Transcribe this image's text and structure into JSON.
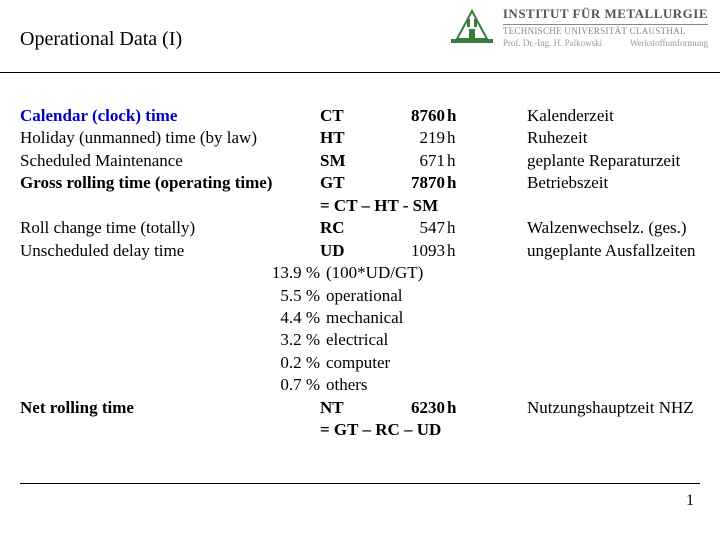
{
  "header": {
    "title": "Operational Data (I)",
    "institute": "INSTITUT FÜR METALLURGIE",
    "university": "TECHNISCHE UNIVERSITÄT CLAUSTHAL",
    "prof": "Prof. Dr.-Ing. H. Palkowski",
    "dept": "Werkstoffumformung"
  },
  "rows": {
    "ct": {
      "label": "Calendar (clock) time",
      "abbr": "CT",
      "value": "8760",
      "unit": "h",
      "de": "Kalenderzeit"
    },
    "ht": {
      "label": "Holiday (unmanned) time (by law)",
      "abbr": "HT",
      "value": "219",
      "unit": "h",
      "de": "Ruhezeit"
    },
    "sm": {
      "label": "Scheduled Maintenance",
      "abbr": "SM",
      "value": "671",
      "unit": "h",
      "de": "geplante Reparaturzeit"
    },
    "gt": {
      "label": "Gross rolling time (operating time)",
      "abbr": "GT",
      "value": "7870",
      "unit": "h",
      "de": "Betriebszeit"
    },
    "gt_formula": "= CT – HT - SM",
    "rc": {
      "label": "Roll change time (totally)",
      "abbr": "RC",
      "value": "547",
      "unit": "h",
      "de": " Walzenwechselz. (ges.)"
    },
    "ud": {
      "label": "Unscheduled delay time",
      "abbr": "UD",
      "value": "1093",
      "unit": "h",
      "de": "ungeplante Ausfallzeiten"
    },
    "pct": [
      {
        "v": "13.9 %",
        "l": "(100*UD/GT)"
      },
      {
        "v": "5.5 %",
        "l": "operational"
      },
      {
        "v": "4.4 %",
        "l": "mechanical"
      },
      {
        "v": "3.2 %",
        "l": "electrical"
      },
      {
        "v": "0.2 %",
        "l": "computer"
      },
      {
        "v": "0.7 %",
        "l": "others"
      }
    ],
    "nt": {
      "label": "Net rolling time",
      "abbr": "NT",
      "value": "6230",
      "unit": "h",
      "de": "Nutzungshauptzeit NHZ"
    },
    "nt_formula": "= GT – RC – UD"
  },
  "page": "1"
}
